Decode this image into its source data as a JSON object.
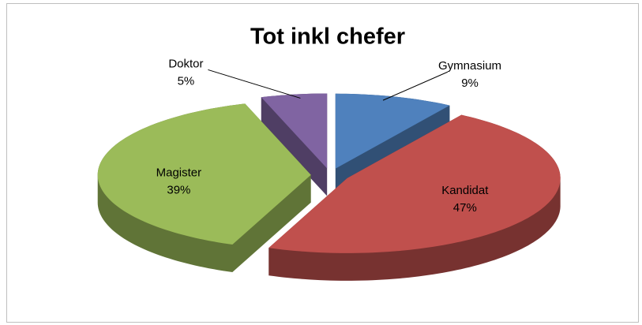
{
  "chart_data": {
    "type": "pie",
    "title": "Tot inkl chefer",
    "categories": [
      "Gymnasium",
      "Kandidat",
      "Magister",
      "Doktor"
    ],
    "values": [
      9,
      47,
      39,
      5
    ],
    "value_labels": [
      "9%",
      "47%",
      "39%",
      "5%"
    ],
    "colors": [
      "#4f81bd",
      "#c0504d",
      "#9bbb59",
      "#8064a2"
    ]
  }
}
